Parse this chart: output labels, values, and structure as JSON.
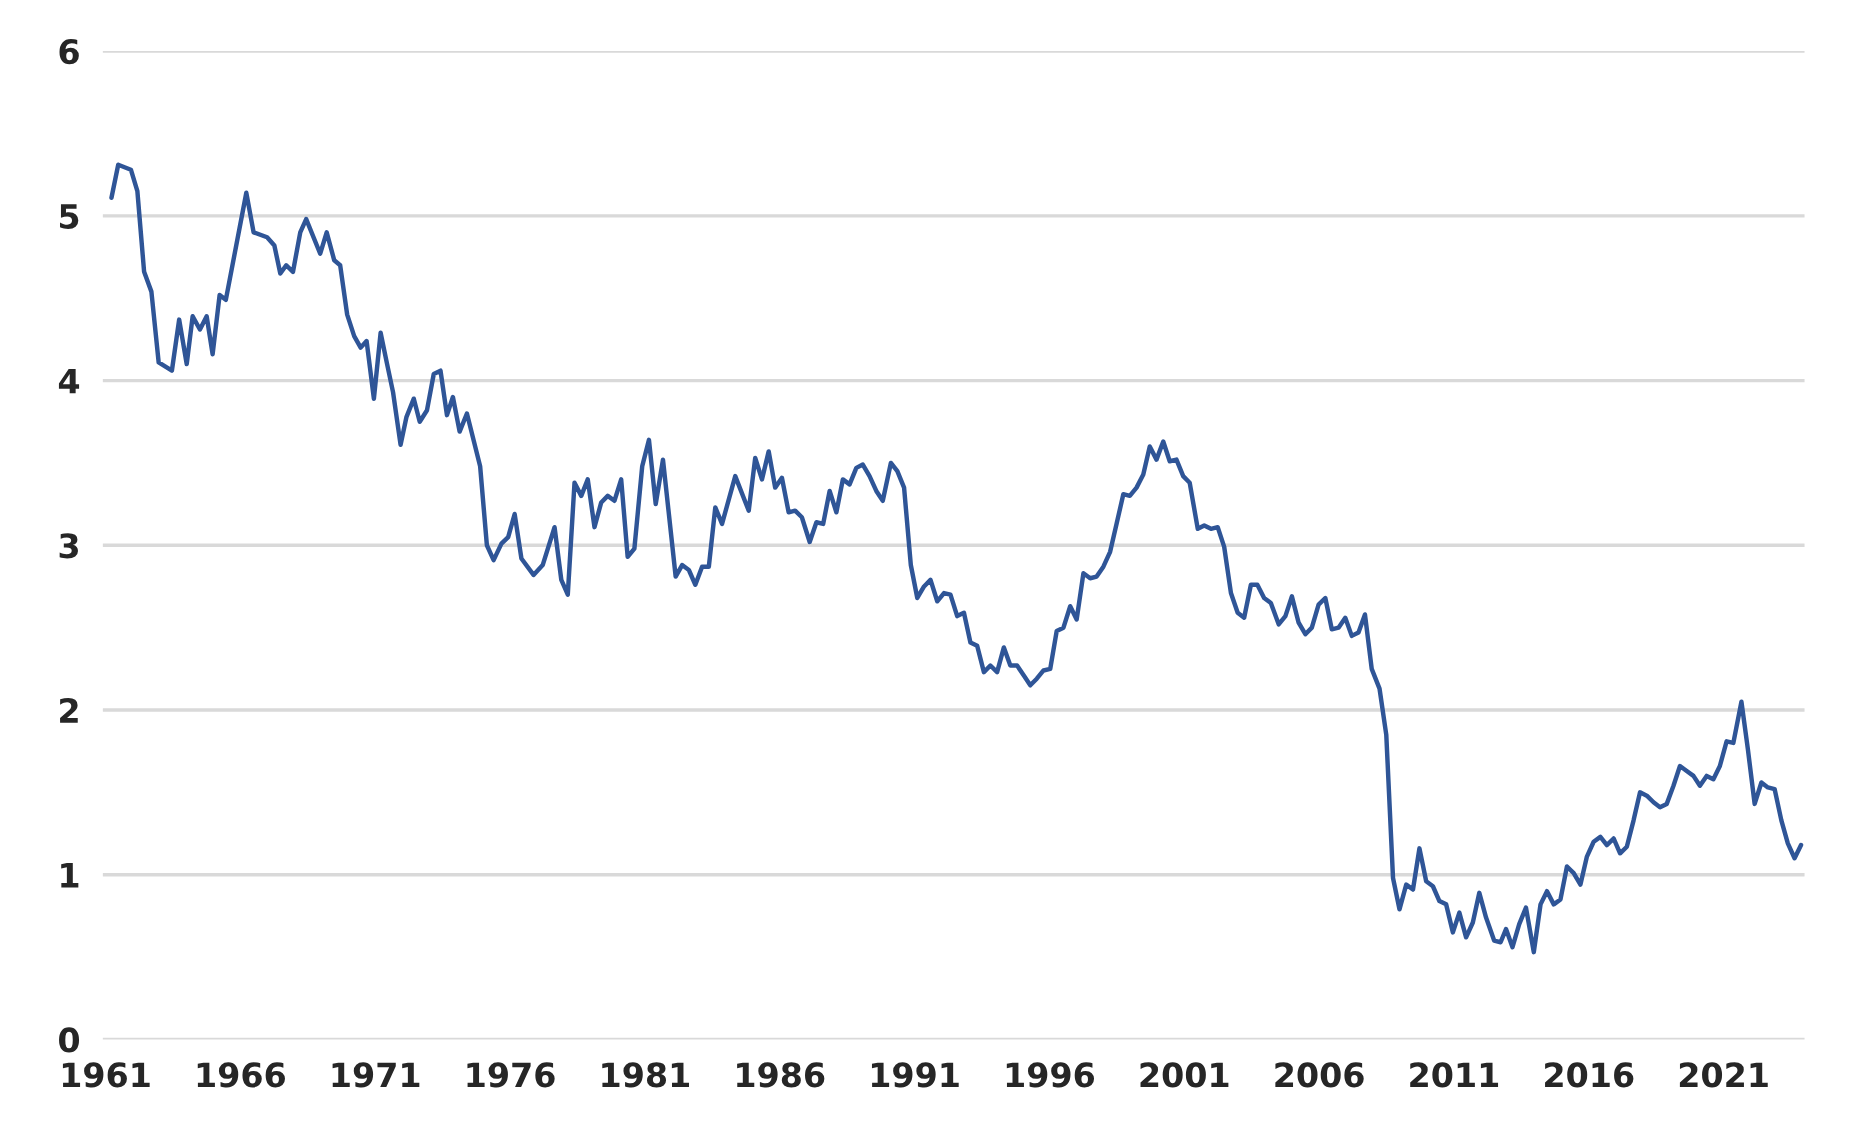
{
  "chart_data": {
    "type": "line",
    "xlim": [
      1960.9,
      2024.0
    ],
    "xticks": [
      1961,
      1966,
      1971,
      1976,
      1981,
      1986,
      1991,
      1996,
      2001,
      2006,
      2011,
      2016,
      2021
    ],
    "ylim": [
      0,
      6
    ],
    "yticks": [
      0,
      1,
      2,
      3,
      4,
      5,
      6
    ],
    "grid": "y",
    "marker": "none",
    "line_style": "solid",
    "series": [
      {
        "color": "#2f5597",
        "x": [
          1961.22,
          1961.47,
          1961.94,
          1962.18,
          1962.43,
          1962.7,
          1962.97,
          1963.46,
          1963.73,
          1964.01,
          1964.23,
          1964.5,
          1964.75,
          1964.97,
          1965.23,
          1965.46,
          1966.22,
          1966.49,
          1966.99,
          1967.26,
          1967.48,
          1967.7,
          1967.95,
          1968.22,
          1968.44,
          1968.96,
          1969.2,
          1969.48,
          1969.7,
          1969.96,
          1970.22,
          1970.46,
          1970.68,
          1970.95,
          1971.2,
          1971.44,
          1971.66,
          1971.94,
          1972.16,
          1972.43,
          1972.65,
          1972.92,
          1973.17,
          1973.42,
          1973.66,
          1973.88,
          1974.13,
          1974.4,
          1974.89,
          1975.14,
          1975.39,
          1975.68,
          1975.93,
          1976.17,
          1976.42,
          1976.87,
          1977.21,
          1977.65,
          1977.9,
          1978.14,
          1978.39,
          1978.64,
          1978.88,
          1979.13,
          1979.38,
          1979.62,
          1979.87,
          1980.12,
          1980.36,
          1980.61,
          1980.9,
          1981.15,
          1981.4,
          1981.67,
          1982.14,
          1982.38,
          1982.63,
          1982.87,
          1983.12,
          1983.37,
          1983.61,
          1983.86,
          1984.35,
          1984.85,
          1985.09,
          1985.34,
          1985.59,
          1985.83,
          1986.08,
          1986.33,
          1986.57,
          1986.82,
          1987.11,
          1987.36,
          1987.61,
          1987.85,
          1988.1,
          1988.34,
          1988.59,
          1988.84,
          1989.08,
          1989.33,
          1989.58,
          1989.82,
          1990.12,
          1990.36,
          1990.61,
          1990.86,
          1991.1,
          1991.35,
          1991.59,
          1991.84,
          1992.09,
          1992.33,
          1992.58,
          1992.83,
          1993.07,
          1993.32,
          1993.57,
          1993.81,
          1994.06,
          1994.31,
          1994.55,
          1994.8,
          1995.05,
          1995.29,
          1995.53,
          1995.78,
          1996.03,
          1996.27,
          1996.52,
          1996.77,
          1997.01,
          1997.26,
          1997.51,
          1997.75,
          1998.0,
          1998.25,
          1998.49,
          1998.74,
          1998.98,
          1999.23,
          1999.48,
          1999.72,
          1999.97,
          2000.22,
          2000.46,
          2000.71,
          2000.96,
          2001.2,
          2001.5,
          2001.74,
          2001.99,
          2002.24,
          2002.48,
          2002.73,
          2002.98,
          2003.22,
          2003.47,
          2003.71,
          2003.96,
          2004.21,
          2004.5,
          2004.75,
          2004.99,
          2005.24,
          2005.49,
          2005.73,
          2005.98,
          2006.23,
          2006.47,
          2006.72,
          2006.97,
          2007.21,
          2007.46,
          2007.7,
          2007.95,
          2008.24,
          2008.49,
          2008.74,
          2008.98,
          2009.23,
          2009.48,
          2009.72,
          2009.97,
          2010.22,
          2010.46,
          2010.71,
          2010.96,
          2011.2,
          2011.45,
          2011.7,
          2011.94,
          2012.19,
          2012.49,
          2012.73,
          2012.93,
          2013.17,
          2013.42,
          2013.67,
          2013.96,
          2014.21,
          2014.45,
          2014.7,
          2014.95,
          2015.19,
          2015.44,
          2015.69,
          2015.93,
          2016.18,
          2016.43,
          2016.67,
          2016.92,
          2017.16,
          2017.41,
          2017.66,
          2017.9,
          2018.15,
          2018.4,
          2018.64,
          2018.89,
          2019.14,
          2019.38,
          2019.63,
          2019.88,
          2020.12,
          2020.37,
          2020.62,
          2020.86,
          2021.11,
          2021.36,
          2021.66,
          2021.9,
          2022.15,
          2022.4,
          2022.64,
          2022.89,
          2023.14,
          2023.38,
          2023.63,
          2023.87
        ],
        "values": [
          5.11,
          5.31,
          5.28,
          5.15,
          4.66,
          4.54,
          4.11,
          4.06,
          4.37,
          4.1,
          4.39,
          4.31,
          4.39,
          4.16,
          4.52,
          4.49,
          5.14,
          4.9,
          4.87,
          4.82,
          4.65,
          4.7,
          4.66,
          4.9,
          4.98,
          4.77,
          4.9,
          4.73,
          4.7,
          4.4,
          4.27,
          4.2,
          4.24,
          3.89,
          4.29,
          4.1,
          3.93,
          3.61,
          3.78,
          3.89,
          3.75,
          3.82,
          4.04,
          4.06,
          3.79,
          3.9,
          3.69,
          3.8,
          3.48,
          3.0,
          2.91,
          3.01,
          3.05,
          3.19,
          2.92,
          2.82,
          2.88,
          3.11,
          2.79,
          2.7,
          3.38,
          3.3,
          3.4,
          3.11,
          3.26,
          3.3,
          3.27,
          3.4,
          2.93,
          2.98,
          3.48,
          3.64,
          3.25,
          3.52,
          2.81,
          2.88,
          2.85,
          2.76,
          2.87,
          2.87,
          3.23,
          3.13,
          3.42,
          3.21,
          3.53,
          3.4,
          3.57,
          3.35,
          3.41,
          3.2,
          3.21,
          3.17,
          3.02,
          3.14,
          3.13,
          3.33,
          3.2,
          3.4,
          3.37,
          3.47,
          3.49,
          3.42,
          3.33,
          3.27,
          3.5,
          3.45,
          3.35,
          2.88,
          2.68,
          2.75,
          2.79,
          2.66,
          2.71,
          2.7,
          2.57,
          2.59,
          2.41,
          2.39,
          2.23,
          2.27,
          2.23,
          2.38,
          2.27,
          2.27,
          2.21,
          2.15,
          2.19,
          2.24,
          2.25,
          2.48,
          2.5,
          2.63,
          2.55,
          2.83,
          2.8,
          2.81,
          2.87,
          2.96,
          3.13,
          3.31,
          3.3,
          3.35,
          3.43,
          3.6,
          3.52,
          3.63,
          3.51,
          3.52,
          3.42,
          3.38,
          3.1,
          3.12,
          3.1,
          3.11,
          2.99,
          2.71,
          2.59,
          2.56,
          2.76,
          2.76,
          2.68,
          2.65,
          2.52,
          2.57,
          2.69,
          2.53,
          2.46,
          2.5,
          2.64,
          2.68,
          2.49,
          2.5,
          2.56,
          2.45,
          2.47,
          2.58,
          2.25,
          2.13,
          1.85,
          0.98,
          0.79,
          0.94,
          0.91,
          1.16,
          0.96,
          0.93,
          0.84,
          0.82,
          0.65,
          0.77,
          0.62,
          0.71,
          0.89,
          0.74,
          0.6,
          0.59,
          0.67,
          0.56,
          0.7,
          0.8,
          0.53,
          0.82,
          0.9,
          0.82,
          0.85,
          1.05,
          1.01,
          0.94,
          1.11,
          1.2,
          1.23,
          1.18,
          1.22,
          1.13,
          1.17,
          1.33,
          1.5,
          1.48,
          1.44,
          1.41,
          1.43,
          1.54,
          1.66,
          1.63,
          1.6,
          1.54,
          1.6,
          1.58,
          1.66,
          1.81,
          1.8,
          2.05,
          1.76,
          1.43,
          1.56,
          1.53,
          1.52,
          1.33,
          1.19,
          1.1,
          1.18
        ]
      }
    ]
  }
}
